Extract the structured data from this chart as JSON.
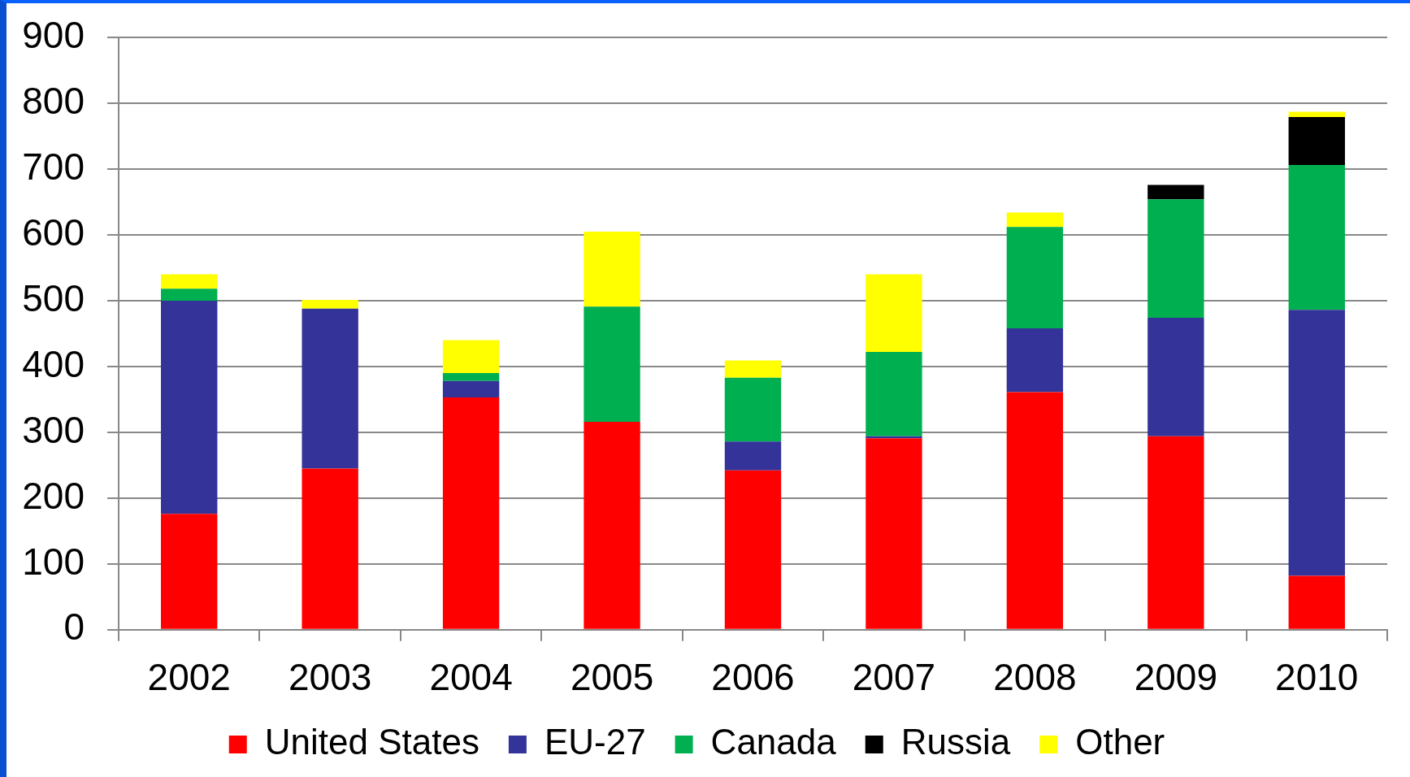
{
  "chart_data": {
    "type": "bar",
    "stacked": true,
    "categories": [
      "2002",
      "2003",
      "2004",
      "2005",
      "2006",
      "2007",
      "2008",
      "2009",
      "2010"
    ],
    "series": [
      {
        "name": "United States",
        "color": "#ff0000",
        "values": [
          176,
          245,
          353,
          316,
          242,
          291,
          361,
          294,
          82
        ]
      },
      {
        "name": "EU-27",
        "color": "#333399",
        "values": [
          324,
          243,
          25,
          0,
          44,
          3,
          97,
          180,
          404
        ]
      },
      {
        "name": "Canada",
        "color": "#00b050",
        "values": [
          18,
          0,
          12,
          175,
          97,
          128,
          154,
          180,
          220
        ]
      },
      {
        "name": "Russia",
        "color": "#000000",
        "values": [
          0,
          0,
          0,
          0,
          0,
          0,
          0,
          22,
          73
        ]
      },
      {
        "name": "Other",
        "color": "#ffff00",
        "values": [
          22,
          13,
          50,
          114,
          26,
          118,
          22,
          0,
          8
        ]
      }
    ],
    "ylim": [
      0,
      900
    ],
    "yticks": [
      0,
      100,
      200,
      300,
      400,
      500,
      600,
      700,
      800,
      900
    ],
    "grid": "y",
    "legend": "bottom"
  }
}
